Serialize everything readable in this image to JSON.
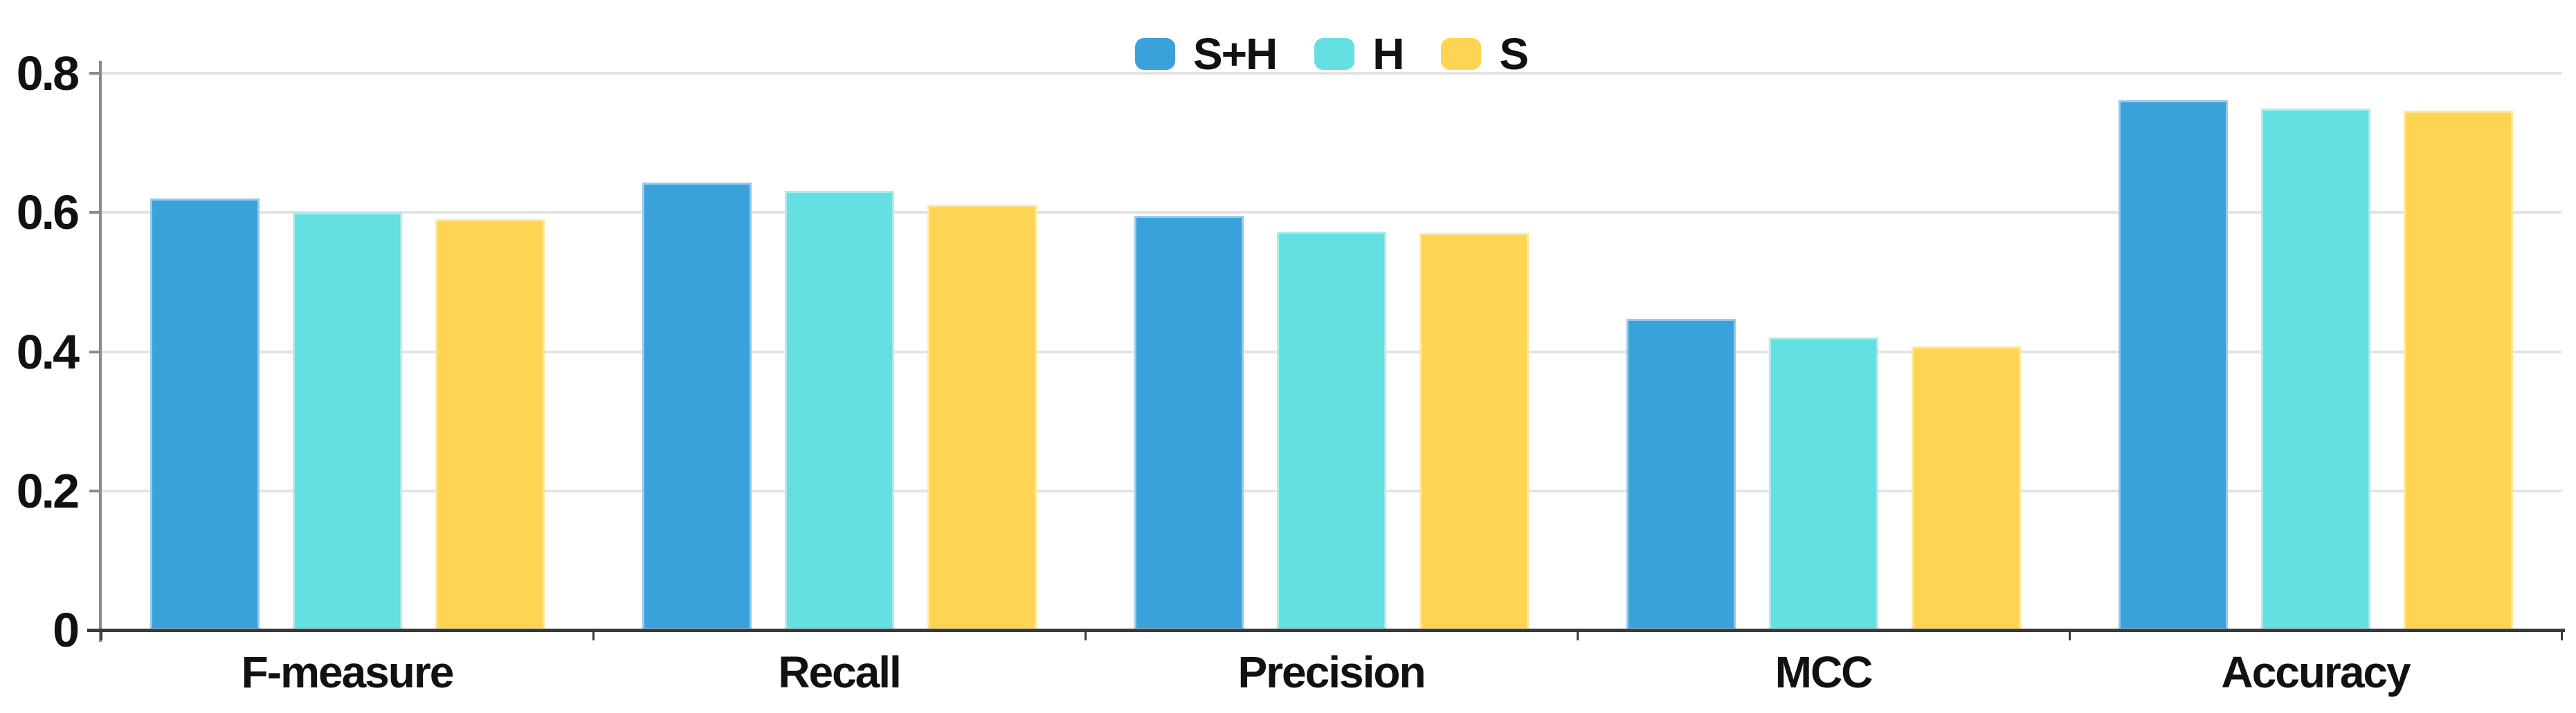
{
  "chart_data": {
    "type": "bar",
    "title": "",
    "xlabel": "",
    "ylabel": "",
    "categories": [
      "F-measure",
      "Recall",
      "Precision",
      "MCC",
      "Accuracy"
    ],
    "series": [
      {
        "name": "S+H",
        "color": "#3aa1db",
        "values": [
          0.62,
          0.643,
          0.595,
          0.447,
          0.761
        ]
      },
      {
        "name": "H",
        "color": "#64dfe2",
        "values": [
          0.6,
          0.631,
          0.572,
          0.42,
          0.749
        ]
      },
      {
        "name": "S",
        "color": "#fdd553",
        "values": [
          0.59,
          0.611,
          0.57,
          0.407,
          0.746
        ]
      }
    ],
    "ylim": [
      0,
      0.8
    ],
    "yticks": [
      0,
      0.2,
      0.4,
      0.6,
      0.8
    ],
    "grid": true,
    "legend_position": "top-center",
    "colors": {
      "gridline": "#e3e3e3",
      "y_axis": "#8a8a8a",
      "x_axis": "#3a3a3a",
      "text": "#111111"
    }
  }
}
